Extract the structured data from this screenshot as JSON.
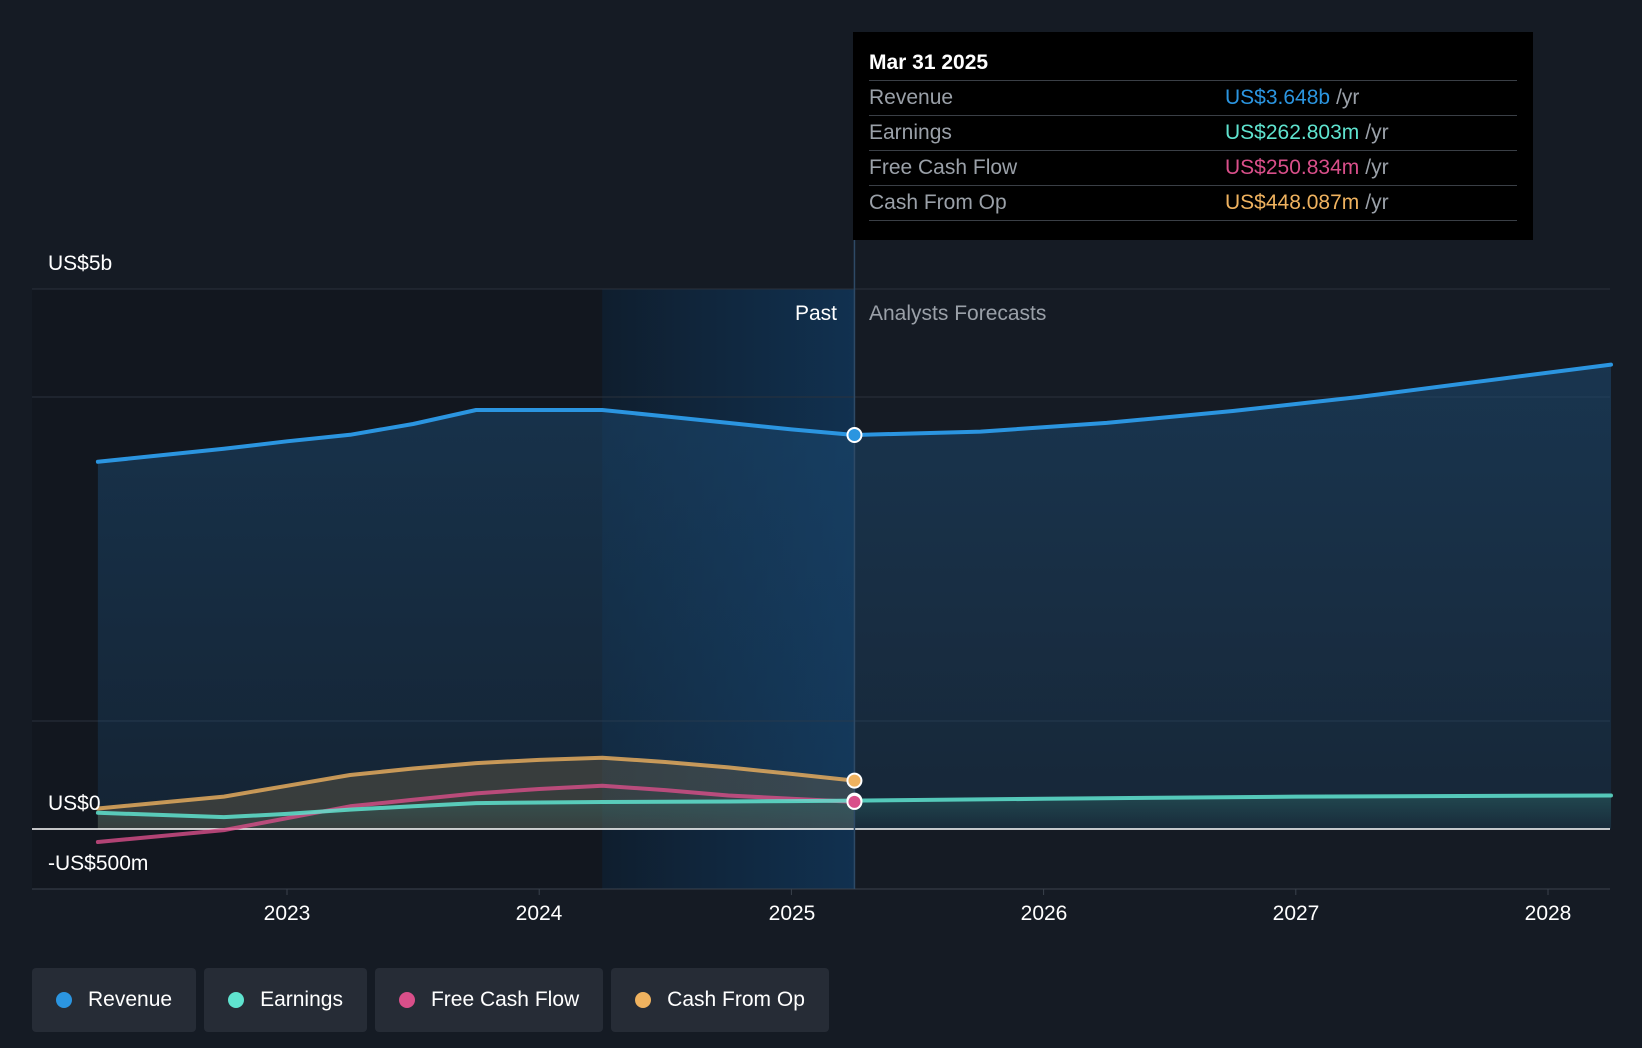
{
  "tooltip": {
    "date": "Mar 31 2025",
    "rows": [
      {
        "label": "Revenue",
        "value": "US$3.648b",
        "unit": "/yr",
        "color": "#2b95e0"
      },
      {
        "label": "Earnings",
        "value": "US$262.803m",
        "unit": "/yr",
        "color": "#5fe3cf"
      },
      {
        "label": "Free Cash Flow",
        "value": "US$250.834m",
        "unit": "/yr",
        "color": "#d94f8a"
      },
      {
        "label": "Cash From Op",
        "value": "US$448.087m",
        "unit": "/yr",
        "color": "#efb25f"
      }
    ]
  },
  "regions": {
    "past": "Past",
    "forecast": "Analysts Forecasts"
  },
  "legend": [
    {
      "label": "Revenue",
      "color": "#2b95e0"
    },
    {
      "label": "Earnings",
      "color": "#5fe3cf"
    },
    {
      "label": "Free Cash Flow",
      "color": "#d94f8a"
    },
    {
      "label": "Cash From Op",
      "color": "#efb25f"
    }
  ],
  "chart_data": {
    "type": "line",
    "title": "",
    "xlabel": "",
    "ylabel": "",
    "ylim": [
      -500,
      5000
    ],
    "y_unit": "US$ millions",
    "y_tick_labels": [
      {
        "value": 5000,
        "label": "US$5b"
      },
      {
        "value": 0,
        "label": "US$0"
      },
      {
        "value": -500,
        "label": "-US$500m"
      }
    ],
    "x_range": [
      2022.25,
      2028.25
    ],
    "x_ticks": [
      2023,
      2024,
      2025,
      2026,
      2027,
      2028
    ],
    "x_tick_labels": [
      "2023",
      "2024",
      "2025",
      "2026",
      "2027",
      "2028"
    ],
    "highlight_start": 2024.25,
    "past_end": 2025.25,
    "series": [
      {
        "name": "Revenue",
        "color": "#2b95e0",
        "points": [
          [
            2022.25,
            3400
          ],
          [
            2022.75,
            3520
          ],
          [
            2023.0,
            3590
          ],
          [
            2023.25,
            3650
          ],
          [
            2023.5,
            3750
          ],
          [
            2023.75,
            3880
          ],
          [
            2024.0,
            3880
          ],
          [
            2024.25,
            3880
          ],
          [
            2024.5,
            3820
          ],
          [
            2024.75,
            3760
          ],
          [
            2025.0,
            3700
          ],
          [
            2025.25,
            3648
          ],
          [
            2025.75,
            3680
          ],
          [
            2026.25,
            3760
          ],
          [
            2026.75,
            3870
          ],
          [
            2027.25,
            4000
          ],
          [
            2027.75,
            4150
          ],
          [
            2028.25,
            4300
          ]
        ],
        "end_marker": [
          2025.25,
          3648
        ]
      },
      {
        "name": "Earnings",
        "color": "#5fe3cf",
        "points": [
          [
            2022.25,
            150
          ],
          [
            2022.75,
            110
          ],
          [
            2023.0,
            140
          ],
          [
            2023.25,
            180
          ],
          [
            2023.5,
            210
          ],
          [
            2023.75,
            240
          ],
          [
            2024.0,
            245
          ],
          [
            2024.25,
            250
          ],
          [
            2024.5,
            252
          ],
          [
            2024.75,
            255
          ],
          [
            2025.0,
            258
          ],
          [
            2025.25,
            262.8
          ],
          [
            2026.0,
            280
          ],
          [
            2027.0,
            300
          ],
          [
            2028.25,
            310
          ]
        ],
        "end_marker": [
          2025.25,
          262.8
        ]
      },
      {
        "name": "Free Cash Flow",
        "color": "#d94f8a",
        "points": [
          [
            2022.25,
            -120
          ],
          [
            2022.75,
            -10
          ],
          [
            2023.0,
            100
          ],
          [
            2023.25,
            210
          ],
          [
            2023.5,
            270
          ],
          [
            2023.75,
            330
          ],
          [
            2024.0,
            370
          ],
          [
            2024.25,
            400
          ],
          [
            2024.5,
            360
          ],
          [
            2024.75,
            310
          ],
          [
            2025.0,
            280
          ],
          [
            2025.25,
            250.8
          ]
        ],
        "end_marker": [
          2025.25,
          250.8
        ]
      },
      {
        "name": "Cash From Op",
        "color": "#efb25f",
        "points": [
          [
            2022.25,
            190
          ],
          [
            2022.75,
            300
          ],
          [
            2023.0,
            400
          ],
          [
            2023.25,
            500
          ],
          [
            2023.5,
            560
          ],
          [
            2023.75,
            610
          ],
          [
            2024.0,
            640
          ],
          [
            2024.25,
            660
          ],
          [
            2024.5,
            620
          ],
          [
            2024.75,
            570
          ],
          [
            2025.0,
            510
          ],
          [
            2025.25,
            448.1
          ]
        ],
        "end_marker": [
          2025.25,
          448.1
        ]
      }
    ]
  }
}
